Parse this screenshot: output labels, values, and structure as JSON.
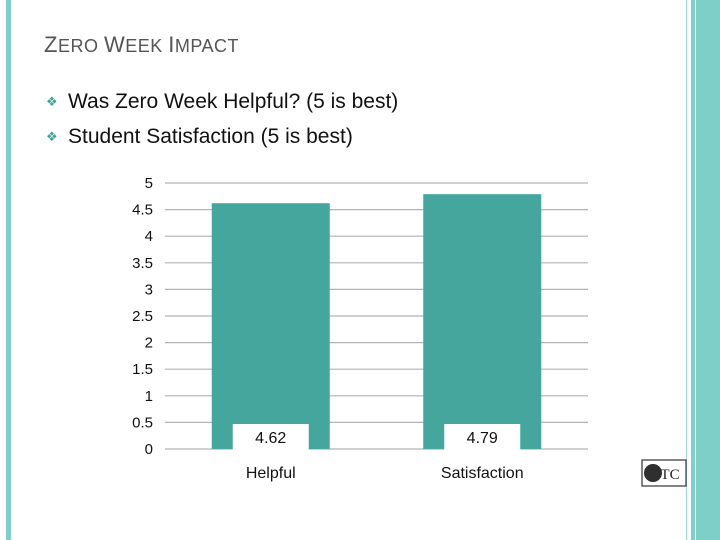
{
  "title": {
    "first_big": "Z",
    "first_rest": "ERO ",
    "second_big": "W",
    "second_rest": "EEK ",
    "third_big": "I",
    "third_rest": "MPACT"
  },
  "bullets": [
    {
      "text": "Was Zero Week Helpful? (5 is best)",
      "icon": "diamond-bullet-icon"
    },
    {
      "text": "Student Satisfaction (5 is best)",
      "icon": "diamond-bullet-icon"
    }
  ],
  "colors": {
    "bar": "#44a69c",
    "grid": "#b3b3b3",
    "accent": "#7ecfc7"
  },
  "chart_data": {
    "type": "bar",
    "categories": [
      "Helpful",
      "Satisfaction"
    ],
    "values": [
      4.62,
      4.79
    ],
    "data_labels": [
      "4.62",
      "4.79"
    ],
    "ylim": [
      0,
      5
    ],
    "yticks": [
      "0",
      "0.5",
      "1",
      "1.5",
      "2",
      "2.5",
      "3",
      "3.5",
      "4",
      "4.5",
      "5"
    ],
    "grid": true,
    "title": "",
    "xlabel": "",
    "ylabel": ""
  },
  "logo": {
    "text": "TC"
  }
}
